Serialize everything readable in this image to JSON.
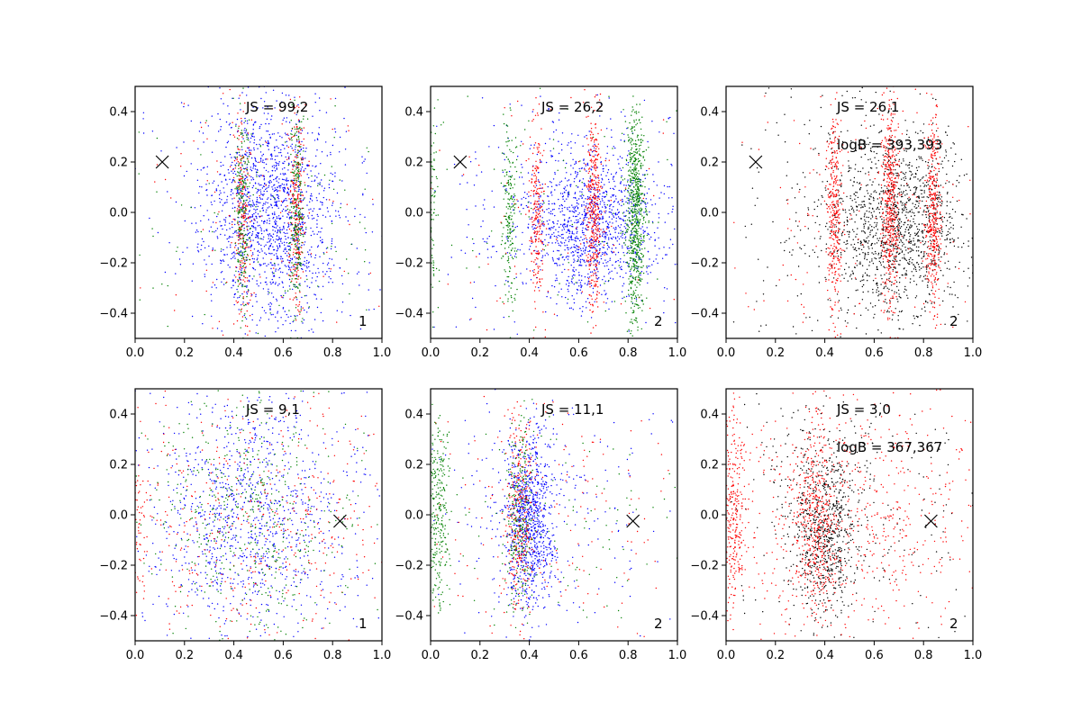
{
  "chart_data": [
    {
      "type": "scatter",
      "title": "",
      "xlabel": "",
      "ylabel": "",
      "xlim": [
        0.0,
        1.0
      ],
      "ylim": [
        -0.5,
        0.5
      ],
      "xticks": [
        "0.0",
        "0.2",
        "0.4",
        "0.6",
        "0.8",
        "1.0"
      ],
      "yticks": [
        "-0.4",
        "-0.2",
        "0.0",
        "0.2",
        "0.4"
      ],
      "annotation_js": "JS = 99,2",
      "annotation_logb": "",
      "corner_label": "1",
      "marker": {
        "x": 0.11,
        "y": 0.2,
        "symbol": "x"
      },
      "series": [
        {
          "color": "#0000ff",
          "clusters": [
            {
              "cx": 0.55,
              "cy": 0.0,
              "sx": 0.12,
              "sy": 0.22,
              "n": 1400
            },
            {
              "cx": 0.5,
              "cy": 0.0,
              "sx": 0.3,
              "sy": 0.3,
              "n": 300
            }
          ]
        },
        {
          "color": "#ff0000",
          "clusters": [
            {
              "cx": 0.435,
              "cy": 0.0,
              "sx": 0.015,
              "sy": 0.2,
              "n": 220
            },
            {
              "cx": 0.655,
              "cy": 0.0,
              "sx": 0.015,
              "sy": 0.2,
              "n": 260
            },
            {
              "cx": 0.5,
              "cy": 0.0,
              "sx": 0.3,
              "sy": 0.3,
              "n": 120
            }
          ]
        },
        {
          "color": "#008000",
          "clusters": [
            {
              "cx": 0.435,
              "cy": 0.0,
              "sx": 0.015,
              "sy": 0.2,
              "n": 220
            },
            {
              "cx": 0.655,
              "cy": 0.0,
              "sx": 0.015,
              "sy": 0.2,
              "n": 260
            },
            {
              "cx": 0.5,
              "cy": 0.0,
              "sx": 0.3,
              "sy": 0.3,
              "n": 120
            }
          ]
        }
      ]
    },
    {
      "type": "scatter",
      "title": "",
      "xlabel": "",
      "ylabel": "",
      "xlim": [
        0.0,
        1.0
      ],
      "ylim": [
        -0.5,
        0.5
      ],
      "xticks": [
        "0.0",
        "0.2",
        "0.4",
        "0.6",
        "0.8",
        "1.0"
      ],
      "yticks": [
        "-0.4",
        "-0.2",
        "0.0",
        "0.2",
        "0.4"
      ],
      "annotation_js": "JS = 26,2",
      "annotation_logb": "",
      "corner_label": "2",
      "marker": {
        "x": 0.12,
        "y": 0.2,
        "symbol": "x"
      },
      "series": [
        {
          "color": "#0000ff",
          "clusters": [
            {
              "cx": 0.65,
              "cy": -0.05,
              "sx": 0.14,
              "sy": 0.15,
              "n": 1200
            },
            {
              "cx": 0.5,
              "cy": 0.0,
              "sx": 0.3,
              "sy": 0.3,
              "n": 250
            }
          ]
        },
        {
          "color": "#ff0000",
          "clusters": [
            {
              "cx": 0.43,
              "cy": 0.0,
              "sx": 0.015,
              "sy": 0.18,
              "n": 220
            },
            {
              "cx": 0.66,
              "cy": 0.0,
              "sx": 0.015,
              "sy": 0.2,
              "n": 380
            },
            {
              "cx": 0.5,
              "cy": 0.0,
              "sx": 0.3,
              "sy": 0.3,
              "n": 100
            }
          ]
        },
        {
          "color": "#008000",
          "clusters": [
            {
              "cx": 0.83,
              "cy": 0.0,
              "sx": 0.02,
              "sy": 0.22,
              "n": 700
            },
            {
              "cx": 0.32,
              "cy": 0.0,
              "sx": 0.015,
              "sy": 0.2,
              "n": 200
            },
            {
              "cx": 0.01,
              "cy": 0.0,
              "sx": 0.01,
              "sy": 0.2,
              "n": 80
            },
            {
              "cx": 0.5,
              "cy": 0.0,
              "sx": 0.3,
              "sy": 0.3,
              "n": 100
            }
          ]
        }
      ]
    },
    {
      "type": "scatter",
      "title": "",
      "xlabel": "",
      "ylabel": "",
      "xlim": [
        0.0,
        1.0
      ],
      "ylim": [
        -0.5,
        0.5
      ],
      "xticks": [
        "0.0",
        "0.2",
        "0.4",
        "0.6",
        "0.8",
        "1.0"
      ],
      "yticks": [
        "-0.4",
        "-0.2",
        "0.0",
        "0.2",
        "0.4"
      ],
      "annotation_js": "JS = 26,1",
      "annotation_logb": "logB = 393,393",
      "corner_label": "2",
      "marker": {
        "x": 0.12,
        "y": 0.2,
        "symbol": "x"
      },
      "series": [
        {
          "color": "#000000",
          "clusters": [
            {
              "cx": 0.68,
              "cy": -0.05,
              "sx": 0.14,
              "sy": 0.17,
              "n": 1300
            },
            {
              "cx": 0.5,
              "cy": 0.0,
              "sx": 0.3,
              "sy": 0.3,
              "n": 250
            }
          ]
        },
        {
          "color": "#ff0000",
          "clusters": [
            {
              "cx": 0.44,
              "cy": 0.0,
              "sx": 0.015,
              "sy": 0.2,
              "n": 330
            },
            {
              "cx": 0.665,
              "cy": 0.02,
              "sx": 0.018,
              "sy": 0.2,
              "n": 480
            },
            {
              "cx": 0.84,
              "cy": 0.0,
              "sx": 0.015,
              "sy": 0.2,
              "n": 380
            },
            {
              "cx": 0.5,
              "cy": 0.0,
              "sx": 0.3,
              "sy": 0.3,
              "n": 150
            }
          ]
        }
      ]
    },
    {
      "type": "scatter",
      "title": "",
      "xlabel": "",
      "ylabel": "",
      "xlim": [
        0.0,
        1.0
      ],
      "ylim": [
        -0.5,
        0.5
      ],
      "xticks": [
        "0.0",
        "0.2",
        "0.4",
        "0.6",
        "0.8",
        "1.0"
      ],
      "yticks": [
        "-0.4",
        "-0.2",
        "0.0",
        "0.2",
        "0.4"
      ],
      "annotation_js": "JS = 9,1",
      "annotation_logb": "",
      "corner_label": "1",
      "marker": {
        "x": 0.83,
        "y": -0.025,
        "symbol": "x"
      },
      "series": [
        {
          "color": "#0000ff",
          "clusters": [
            {
              "cx": 0.45,
              "cy": 0.0,
              "sx": 0.18,
              "sy": 0.22,
              "n": 700
            },
            {
              "cx": 0.5,
              "cy": 0.0,
              "sx": 0.3,
              "sy": 0.3,
              "n": 400
            }
          ]
        },
        {
          "color": "#ff0000",
          "clusters": [
            {
              "cx": 0.5,
              "cy": 0.0,
              "sx": 0.3,
              "sy": 0.3,
              "n": 500
            },
            {
              "cx": 0.02,
              "cy": 0.0,
              "sx": 0.02,
              "sy": 0.2,
              "n": 60
            }
          ]
        },
        {
          "color": "#008000",
          "clusters": [
            {
              "cx": 0.45,
              "cy": 0.0,
              "sx": 0.2,
              "sy": 0.25,
              "n": 400
            },
            {
              "cx": 0.5,
              "cy": 0.0,
              "sx": 0.3,
              "sy": 0.3,
              "n": 150
            }
          ]
        }
      ]
    },
    {
      "type": "scatter",
      "title": "",
      "xlabel": "",
      "ylabel": "",
      "xlim": [
        0.0,
        1.0
      ],
      "ylim": [
        -0.5,
        0.5
      ],
      "xticks": [
        "0.0",
        "0.2",
        "0.4",
        "0.6",
        "0.8",
        "1.0"
      ],
      "yticks": [
        "-0.4",
        "-0.2",
        "0.0",
        "0.2",
        "0.4"
      ],
      "annotation_js": "JS = 11,1",
      "annotation_logb": "",
      "corner_label": "2",
      "marker": {
        "x": 0.82,
        "y": -0.025,
        "symbol": "x"
      },
      "series": [
        {
          "color": "#0000ff",
          "clusters": [
            {
              "cx": 0.4,
              "cy": -0.02,
              "sx": 0.05,
              "sy": 0.17,
              "n": 900
            },
            {
              "cx": 0.5,
              "cy": 0.0,
              "sx": 0.3,
              "sy": 0.3,
              "n": 250
            }
          ]
        },
        {
          "color": "#ff0000",
          "clusters": [
            {
              "cx": 0.36,
              "cy": 0.0,
              "sx": 0.03,
              "sy": 0.2,
              "n": 300
            },
            {
              "cx": 0.5,
              "cy": 0.0,
              "sx": 0.3,
              "sy": 0.3,
              "n": 200
            }
          ]
        },
        {
          "color": "#008000",
          "clusters": [
            {
              "cx": 0.03,
              "cy": 0.0,
              "sx": 0.025,
              "sy": 0.2,
              "n": 280
            },
            {
              "cx": 0.36,
              "cy": 0.0,
              "sx": 0.03,
              "sy": 0.2,
              "n": 250
            },
            {
              "cx": 0.5,
              "cy": 0.0,
              "sx": 0.3,
              "sy": 0.3,
              "n": 120
            }
          ]
        }
      ]
    },
    {
      "type": "scatter",
      "title": "",
      "xlabel": "",
      "ylabel": "",
      "xlim": [
        0.0,
        1.0
      ],
      "ylim": [
        -0.5,
        0.5
      ],
      "xticks": [
        "0.0",
        "0.2",
        "0.4",
        "0.6",
        "0.8",
        "1.0"
      ],
      "yticks": [
        "-0.4",
        "-0.2",
        "0.0",
        "0.2",
        "0.4"
      ],
      "annotation_js": "JS = 3,0",
      "annotation_logb": "logB = 367,367",
      "corner_label": "2",
      "marker": {
        "x": 0.83,
        "y": -0.025,
        "symbol": "x"
      },
      "series": [
        {
          "color": "#000000",
          "clusters": [
            {
              "cx": 0.4,
              "cy": -0.05,
              "sx": 0.07,
              "sy": 0.17,
              "n": 700
            },
            {
              "cx": 0.5,
              "cy": 0.0,
              "sx": 0.3,
              "sy": 0.3,
              "n": 300
            }
          ]
        },
        {
          "color": "#ff0000",
          "clusters": [
            {
              "cx": 0.37,
              "cy": -0.05,
              "sx": 0.04,
              "sy": 0.17,
              "n": 400
            },
            {
              "cx": 0.03,
              "cy": 0.0,
              "sx": 0.025,
              "sy": 0.2,
              "n": 300
            },
            {
              "cx": 0.5,
              "cy": 0.0,
              "sx": 0.3,
              "sy": 0.3,
              "n": 700
            }
          ]
        }
      ]
    }
  ]
}
